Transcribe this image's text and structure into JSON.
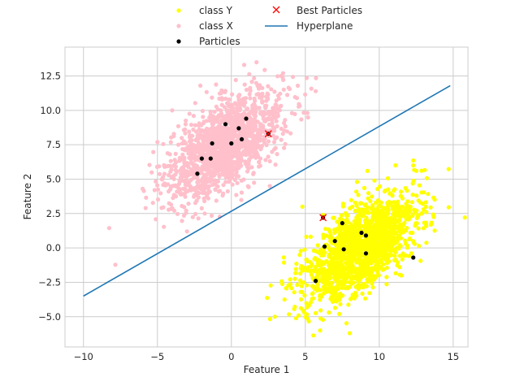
{
  "chart_data": {
    "type": "scatter",
    "xlabel": "Feature 1",
    "ylabel": "Feature 2",
    "xlim": [
      -11.25,
      16.0
    ],
    "ylim": [
      -7.2,
      14.6
    ],
    "xticks": [
      -10,
      -5,
      0,
      5,
      10,
      15
    ],
    "yticks": [
      -5.0,
      -2.5,
      0.0,
      2.5,
      5.0,
      7.5,
      10.0,
      12.5
    ],
    "xtick_labels": [
      "−10",
      "−5",
      "0",
      "5",
      "10",
      "15"
    ],
    "ytick_labels": [
      "−5.0",
      "−2.5",
      "0.0",
      "2.5",
      "5.0",
      "7.5",
      "10.0",
      "12.5"
    ],
    "grid": true,
    "legend_position": "top-center",
    "series": [
      {
        "name": "class Y",
        "marker": "dot",
        "color": "#ffff00",
        "cluster": {
          "center": [
            8.7,
            0.0
          ],
          "spread": [
            1.9,
            1.9
          ],
          "correlation": 0.6
        },
        "points": [
          [
            6.2,
            2.2
          ],
          [
            9.2,
            5.6
          ],
          [
            12.3,
            6.0
          ],
          [
            13.5,
            1.7
          ],
          [
            5.5,
            -2.2
          ],
          [
            8.0,
            -6.2
          ],
          [
            6.0,
            -6.0
          ],
          [
            4.8,
            3.0
          ],
          [
            8.5,
            4.8
          ],
          [
            11.5,
            -2.0
          ],
          [
            7.3,
            -4.8
          ],
          [
            13.0,
            2.8
          ]
        ]
      },
      {
        "name": "class X",
        "marker": "dot",
        "color": "#ffc0cb",
        "cluster": {
          "center": [
            -0.4,
            7.5
          ],
          "spread": [
            1.9,
            1.9
          ],
          "correlation": 0.6
        },
        "points": [
          [
            1.7,
            13.5
          ],
          [
            -5.8,
            2.9
          ],
          [
            -3.0,
            1.2
          ],
          [
            5.7,
            11.4
          ],
          [
            -6.0,
            4.3
          ],
          [
            3.5,
            12.7
          ],
          [
            -2.1,
            11.8
          ],
          [
            4.1,
            9.8
          ],
          [
            -4.7,
            5.0
          ],
          [
            2.6,
            4.5
          ],
          [
            -1.8,
            2.5
          ],
          [
            -4.0,
            10.0
          ]
        ]
      },
      {
        "name": "Particles",
        "marker": "dot",
        "color": "#000000",
        "points": [
          [
            -2.3,
            5.4
          ],
          [
            -2.0,
            6.5
          ],
          [
            -1.4,
            6.5
          ],
          [
            -1.3,
            7.6
          ],
          [
            -0.4,
            9.0
          ],
          [
            0.0,
            7.6
          ],
          [
            0.5,
            8.7
          ],
          [
            0.7,
            7.9
          ],
          [
            1.0,
            9.4
          ],
          [
            2.5,
            8.3
          ],
          [
            6.3,
            0.1
          ],
          [
            7.0,
            0.5
          ],
          [
            7.5,
            1.8
          ],
          [
            7.6,
            -0.1
          ],
          [
            8.8,
            1.1
          ],
          [
            9.1,
            0.9
          ],
          [
            9.1,
            -0.4
          ],
          [
            5.7,
            -2.4
          ],
          [
            12.3,
            -0.7
          ],
          [
            6.2,
            2.2
          ]
        ]
      },
      {
        "name": "Best Particles",
        "marker": "x",
        "color": "#ff0000",
        "points": [
          [
            2.5,
            8.3
          ],
          [
            6.2,
            2.2
          ]
        ]
      },
      {
        "name": "Hyperplane",
        "marker": "line",
        "color": "#1f77b4",
        "points": [
          [
            -10.0,
            -3.5
          ],
          [
            14.8,
            11.8
          ]
        ]
      }
    ]
  }
}
